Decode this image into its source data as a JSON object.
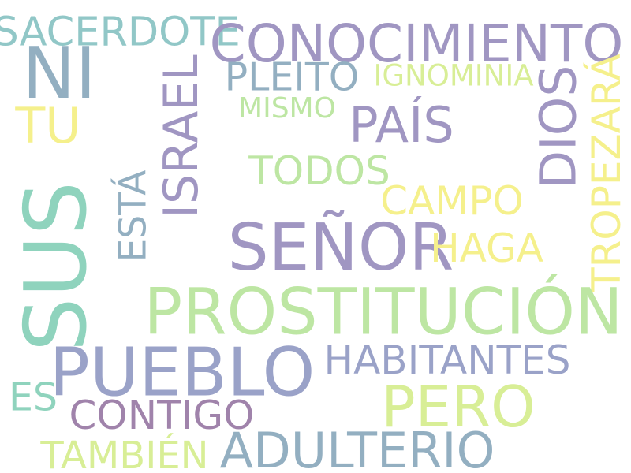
{
  "word_cloud": {
    "words": [
      {
        "text": "SACERDOTE",
        "color": "#91c7c7"
      },
      {
        "text": "CONOCIMIENTO",
        "color": "#a096c2"
      },
      {
        "text": "NI",
        "color": "#93afc1"
      },
      {
        "text": "PLEITO",
        "color": "#93afc1"
      },
      {
        "text": "IGNOMINIA",
        "color": "#d8ee96"
      },
      {
        "text": "TROPEZARÁ",
        "color": "#f5f08c"
      },
      {
        "text": "ISRAEL",
        "color": "#a096c2"
      },
      {
        "text": "MISMO",
        "color": "#bde6a3"
      },
      {
        "text": "DIOS",
        "color": "#a096c2"
      },
      {
        "text": "TU",
        "color": "#f5f08c"
      },
      {
        "text": "PAÍS",
        "color": "#a096c2"
      },
      {
        "text": "TODOS",
        "color": "#bde6a3"
      },
      {
        "text": "ESTÁ",
        "color": "#93afc1"
      },
      {
        "text": "CAMPO",
        "color": "#f5f08c"
      },
      {
        "text": "SUS",
        "color": "#8fd3bd"
      },
      {
        "text": "SEÑOR",
        "color": "#a096c2"
      },
      {
        "text": "HAGA",
        "color": "#f5f08c"
      },
      {
        "text": "PROSTITUCIÓN",
        "color": "#bde6a3"
      },
      {
        "text": "PUEBLO",
        "color": "#9aa2c8"
      },
      {
        "text": "HABITANTES",
        "color": "#9aa2c8"
      },
      {
        "text": "ES",
        "color": "#8fd3bd"
      },
      {
        "text": "PERO",
        "color": "#d8ee96"
      },
      {
        "text": "CONTIGO",
        "color": "#a083ab"
      },
      {
        "text": "ADULTERIO",
        "color": "#93afc1"
      },
      {
        "text": "TAMBIÉN",
        "color": "#d8ee96"
      }
    ]
  }
}
